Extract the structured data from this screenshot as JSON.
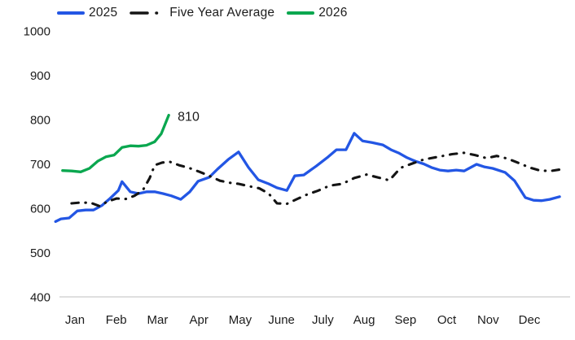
{
  "page": {
    "background": "#ffffff",
    "axis_line_color": "#cccccc",
    "text_color": "#1c1c1c"
  },
  "legend": {
    "items": [
      {
        "label": "2025",
        "color": "#2356e4",
        "style": "solid"
      },
      {
        "label": "Five Year Average",
        "color": "#141414",
        "style": "dash-dot"
      },
      {
        "label": "2026",
        "color": "#0aa74f",
        "style": "solid"
      }
    ]
  },
  "chart_data": {
    "type": "line",
    "title": "",
    "xlabel": "",
    "ylabel": "",
    "categories": [
      "Jan",
      "Feb",
      "Mar",
      "Apr",
      "May",
      "June",
      "July",
      "Aug",
      "Sep",
      "Oct",
      "Nov",
      "Dec"
    ],
    "x_unit": "fractional month index (0 = Jan center, 11 = Dec center), weekly resolution",
    "ylim": [
      400,
      1000
    ],
    "yticks": [
      400,
      500,
      600,
      700,
      800,
      900,
      1000
    ],
    "grid": false,
    "legend_position": "top",
    "annotation": {
      "text": "810",
      "series": "2026",
      "attach": "last-point"
    },
    "series": [
      {
        "name": "2025",
        "color": "#2356e4",
        "dash": "solid",
        "points": [
          [
            -0.47,
            570
          ],
          [
            -0.34,
            576
          ],
          [
            -0.14,
            578
          ],
          [
            0.06,
            594
          ],
          [
            0.26,
            596
          ],
          [
            0.45,
            596
          ],
          [
            0.65,
            606
          ],
          [
            0.85,
            622
          ],
          [
            1.05,
            640
          ],
          [
            1.14,
            660
          ],
          [
            1.34,
            637
          ],
          [
            1.54,
            633
          ],
          [
            1.74,
            637
          ],
          [
            1.93,
            637
          ],
          [
            2.13,
            633
          ],
          [
            2.33,
            628
          ],
          [
            2.56,
            620
          ],
          [
            2.78,
            637
          ],
          [
            2.98,
            661
          ],
          [
            3.25,
            670
          ],
          [
            3.45,
            688
          ],
          [
            3.71,
            710
          ],
          [
            3.96,
            727
          ],
          [
            4.2,
            692
          ],
          [
            4.44,
            664
          ],
          [
            4.69,
            655
          ],
          [
            4.89,
            646
          ],
          [
            5.13,
            640
          ],
          [
            5.32,
            673
          ],
          [
            5.54,
            675
          ],
          [
            5.84,
            695
          ],
          [
            6.13,
            716
          ],
          [
            6.33,
            732
          ],
          [
            6.56,
            732
          ],
          [
            6.76,
            769
          ],
          [
            6.96,
            752
          ],
          [
            7.19,
            748
          ],
          [
            7.45,
            743
          ],
          [
            7.65,
            732
          ],
          [
            7.85,
            724
          ],
          [
            8.04,
            714
          ],
          [
            8.24,
            706
          ],
          [
            8.44,
            700
          ],
          [
            8.63,
            692
          ],
          [
            8.83,
            686
          ],
          [
            9.03,
            684
          ],
          [
            9.23,
            686
          ],
          [
            9.42,
            684
          ],
          [
            9.72,
            699
          ],
          [
            9.92,
            693
          ],
          [
            10.11,
            690
          ],
          [
            10.41,
            681
          ],
          [
            10.64,
            662
          ],
          [
            10.9,
            624
          ],
          [
            11.1,
            618
          ],
          [
            11.29,
            617
          ],
          [
            11.49,
            620
          ],
          [
            11.73,
            626
          ]
        ]
      },
      {
        "name": "Five Year Average",
        "color": "#141414",
        "dash": "dash-dot",
        "points": [
          [
            -0.08,
            611
          ],
          [
            0.16,
            613
          ],
          [
            0.39,
            612
          ],
          [
            0.59,
            605
          ],
          [
            0.79,
            615
          ],
          [
            1.01,
            622
          ],
          [
            1.24,
            621
          ],
          [
            1.44,
            628
          ],
          [
            1.64,
            640
          ],
          [
            1.81,
            668
          ],
          [
            1.93,
            697
          ],
          [
            2.11,
            703
          ],
          [
            2.29,
            705
          ],
          [
            2.52,
            697
          ],
          [
            2.76,
            691
          ],
          [
            3.02,
            682
          ],
          [
            3.25,
            673
          ],
          [
            3.51,
            662
          ],
          [
            3.77,
            657
          ],
          [
            3.96,
            655
          ],
          [
            4.2,
            650
          ],
          [
            4.46,
            645
          ],
          [
            4.69,
            633
          ],
          [
            4.89,
            611
          ],
          [
            5.13,
            610
          ],
          [
            5.38,
            621
          ],
          [
            5.62,
            631
          ],
          [
            5.87,
            639
          ],
          [
            6.17,
            651
          ],
          [
            6.47,
            655
          ],
          [
            6.76,
            668
          ],
          [
            7.06,
            676
          ],
          [
            7.35,
            669
          ],
          [
            7.61,
            663
          ],
          [
            7.88,
            691
          ],
          [
            8.14,
            700
          ],
          [
            8.44,
            710
          ],
          [
            8.79,
            716
          ],
          [
            9.13,
            722
          ],
          [
            9.42,
            725
          ],
          [
            9.68,
            720
          ],
          [
            9.96,
            713
          ],
          [
            10.21,
            718
          ],
          [
            10.47,
            712
          ],
          [
            10.74,
            702
          ],
          [
            11.0,
            692
          ],
          [
            11.26,
            685
          ],
          [
            11.51,
            684
          ],
          [
            11.79,
            688
          ]
        ]
      },
      {
        "name": "2026",
        "color": "#0aa74f",
        "dash": "solid",
        "points": [
          [
            -0.3,
            685
          ],
          [
            -0.08,
            684
          ],
          [
            0.14,
            682
          ],
          [
            0.35,
            690
          ],
          [
            0.55,
            706
          ],
          [
            0.75,
            716
          ],
          [
            0.95,
            720
          ],
          [
            1.14,
            737
          ],
          [
            1.34,
            741
          ],
          [
            1.54,
            740
          ],
          [
            1.73,
            742
          ],
          [
            1.93,
            750
          ],
          [
            2.09,
            768
          ],
          [
            2.27,
            810
          ]
        ]
      }
    ]
  }
}
